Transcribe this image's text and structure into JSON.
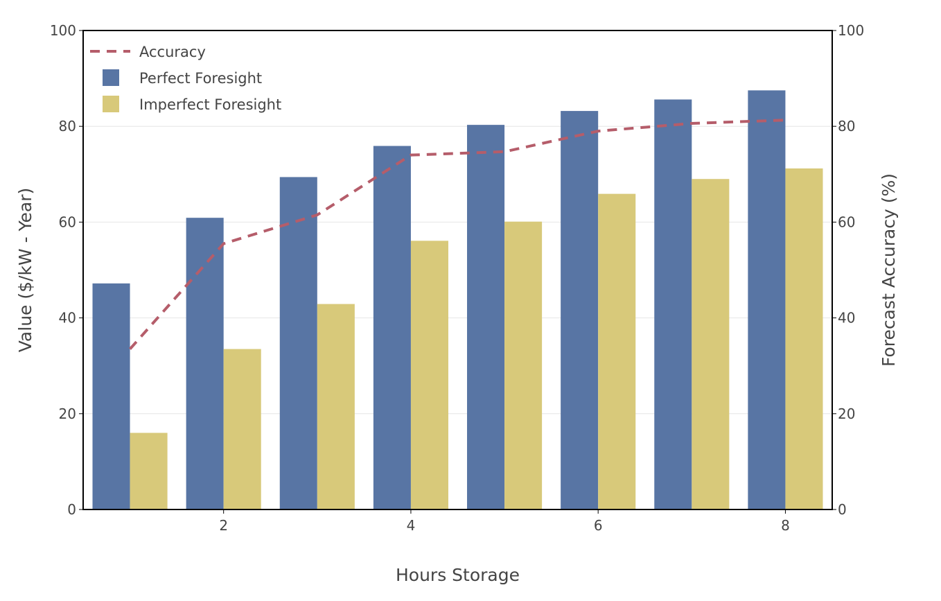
{
  "chart_data": {
    "type": "bar",
    "x": [
      1,
      2,
      3,
      4,
      5,
      6,
      7,
      8
    ],
    "x_ticks": [
      2,
      4,
      6,
      8
    ],
    "x_range": [
      0.5,
      8.5
    ],
    "xlabel": "Hours Storage",
    "ylabel": "Value ($/kW - Year)",
    "y2label": "Forecast Accuracy (%)",
    "ylim": [
      0,
      100
    ],
    "y2lim": [
      0,
      100
    ],
    "y_ticks": [
      0,
      20,
      40,
      60,
      80,
      100
    ],
    "grid": true,
    "legend_position": "top-left",
    "series": [
      {
        "name": "Perfect Foresight",
        "type": "bar",
        "axis": "left",
        "color": "#5875a4",
        "values": [
          47.2,
          60.9,
          69.4,
          75.9,
          80.3,
          83.2,
          85.6,
          87.5
        ]
      },
      {
        "name": "Imperfect Foresight",
        "type": "bar",
        "axis": "left",
        "color": "#d8c97a",
        "values": [
          16.0,
          33.5,
          42.9,
          56.1,
          60.1,
          65.9,
          69.0,
          71.2
        ]
      },
      {
        "name": "Accuracy",
        "type": "line",
        "axis": "right",
        "color": "#b55d6a",
        "dash": "dashed",
        "values": [
          33.5,
          55.5,
          61.5,
          74.0,
          74.7,
          79.0,
          80.6,
          81.3
        ]
      }
    ]
  }
}
